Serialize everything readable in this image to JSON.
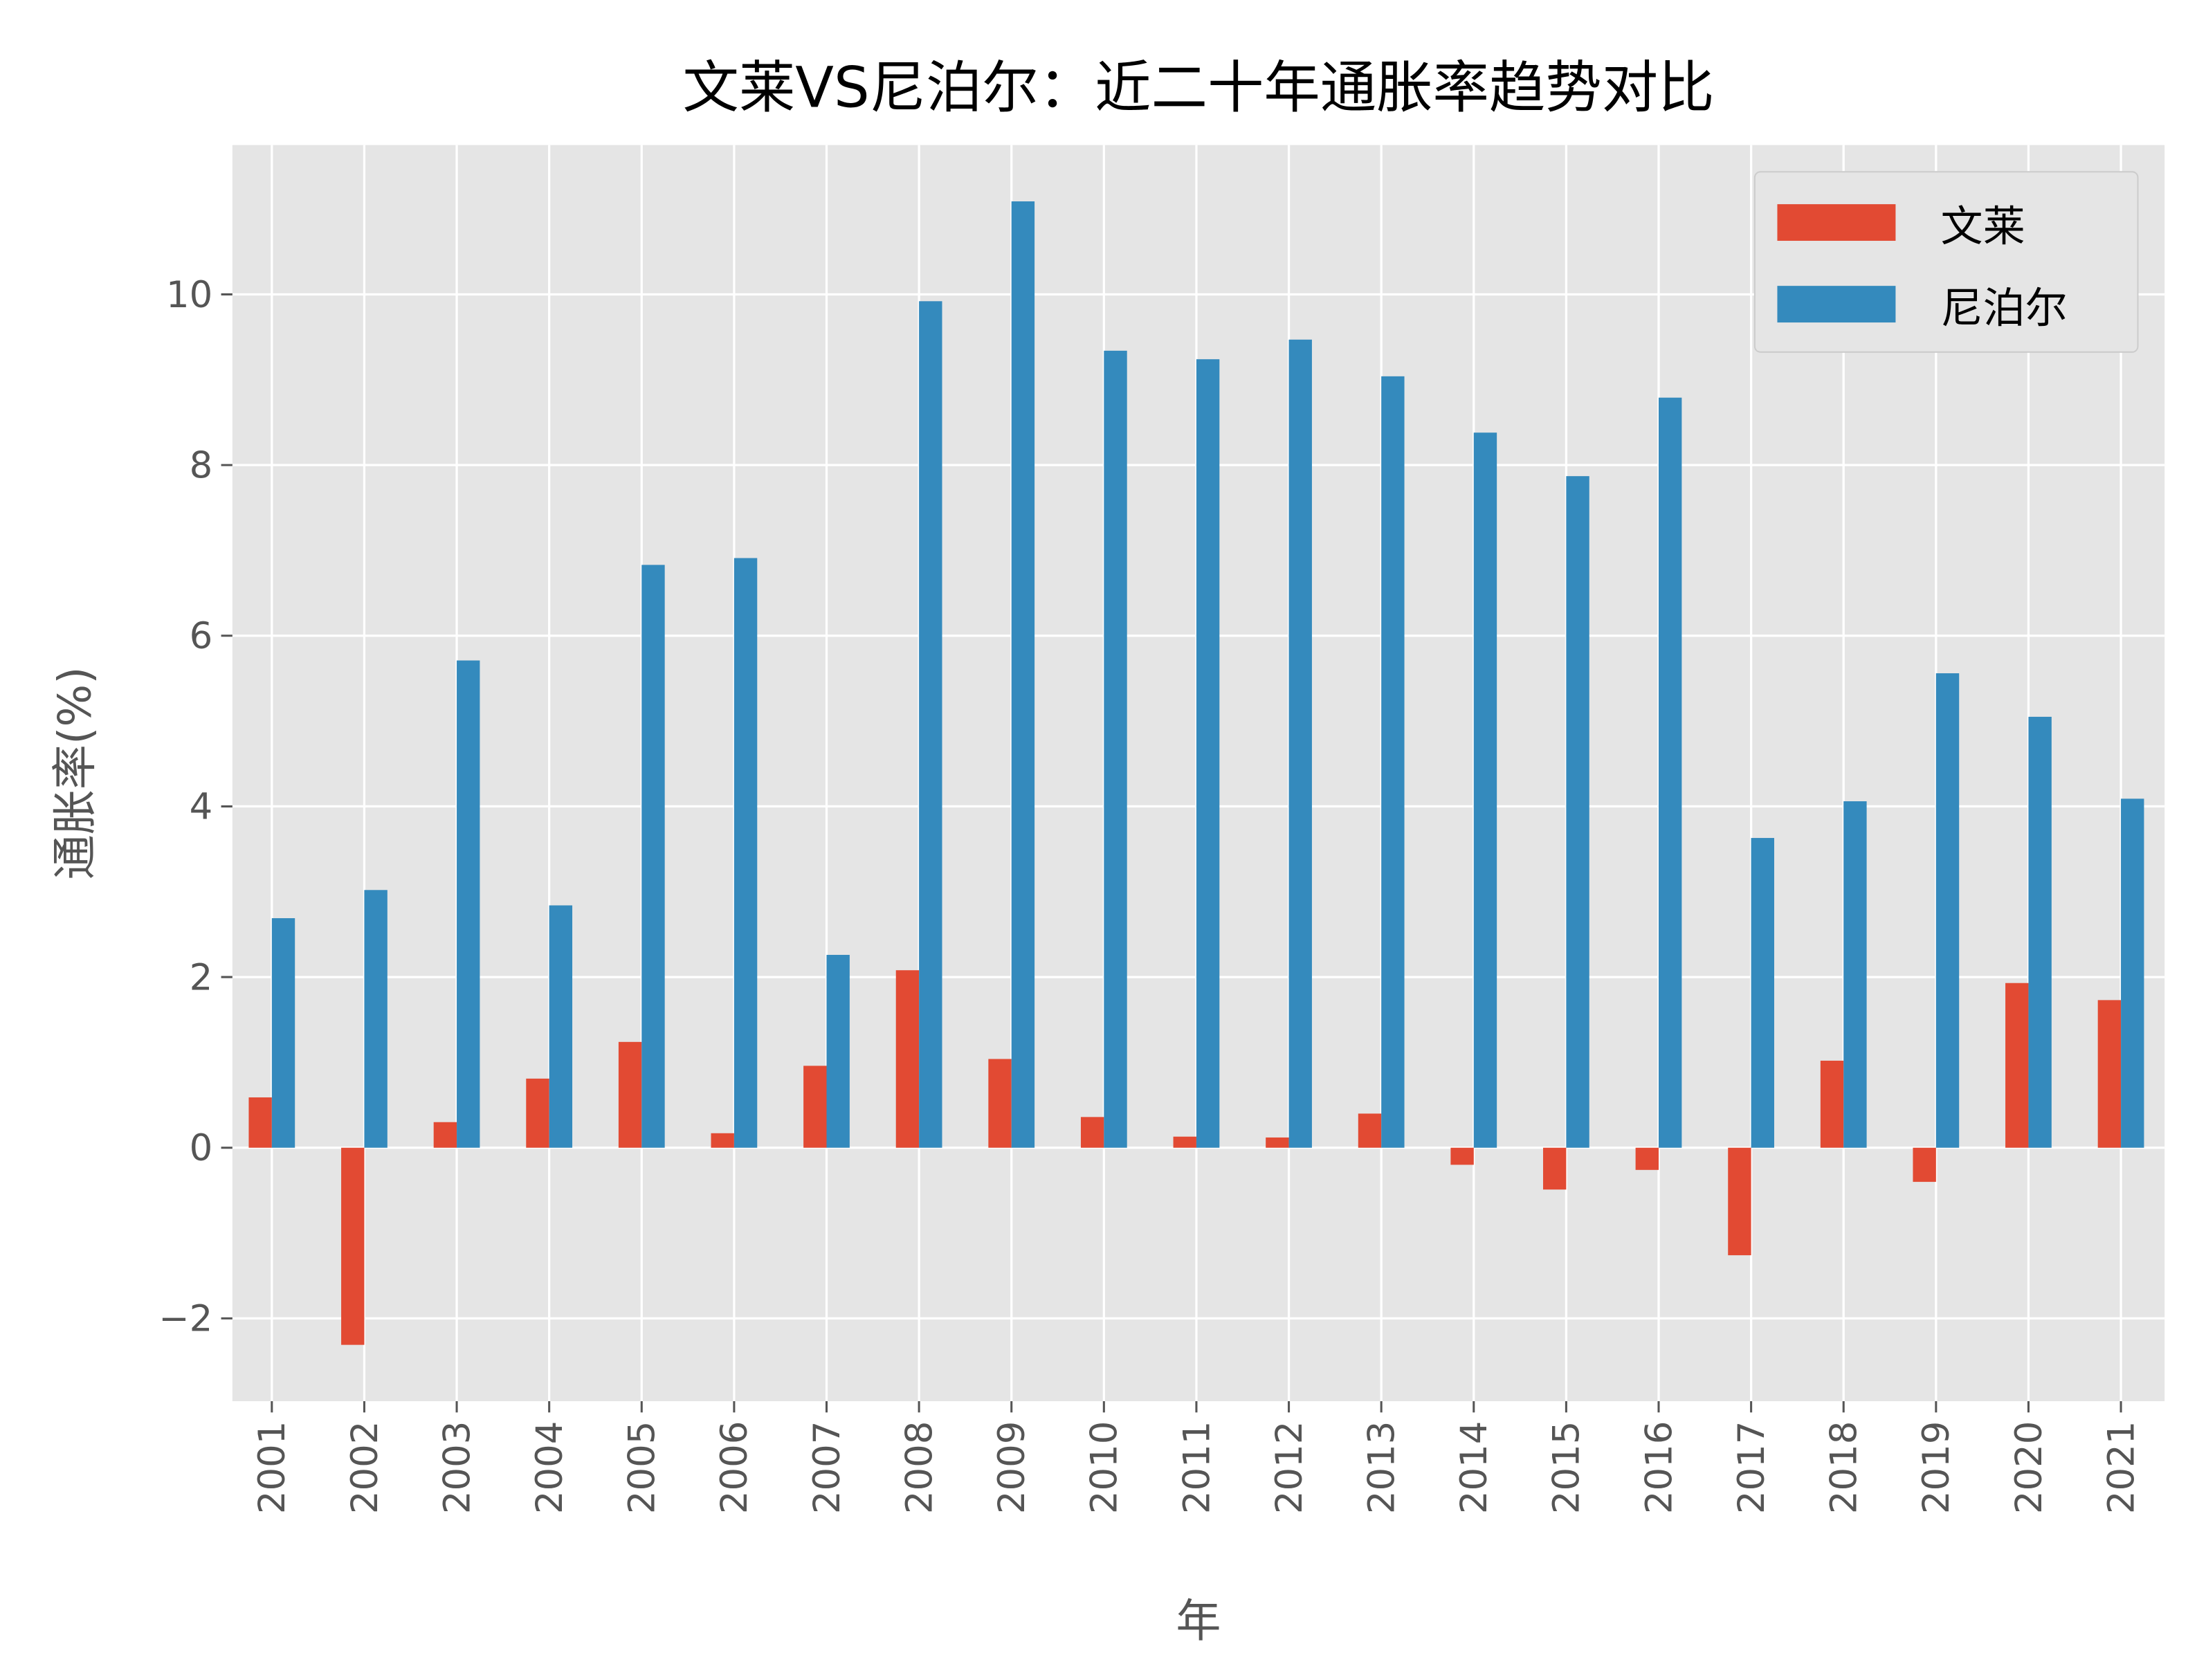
{
  "chart_data": {
    "type": "bar",
    "title": "文莱VS尼泊尔：近二十年通胀率趋势对比",
    "xlabel": "年",
    "ylabel": "通胀率(%)",
    "categories": [
      "2001",
      "2002",
      "2003",
      "2004",
      "2005",
      "2006",
      "2007",
      "2008",
      "2009",
      "2010",
      "2011",
      "2012",
      "2013",
      "2014",
      "2015",
      "2016",
      "2017",
      "2018",
      "2019",
      "2020",
      "2021"
    ],
    "series": [
      {
        "name": "文莱",
        "color": "#E24A33",
        "values": [
          0.59,
          -2.31,
          0.3,
          0.81,
          1.24,
          0.17,
          0.96,
          2.08,
          1.04,
          0.36,
          0.13,
          0.12,
          0.4,
          -0.2,
          -0.49,
          -0.26,
          -1.26,
          1.02,
          -0.4,
          1.93,
          1.73
        ]
      },
      {
        "name": "尼泊尔",
        "color": "#348ABD",
        "values": [
          2.69,
          3.02,
          5.71,
          2.84,
          6.83,
          6.91,
          2.26,
          9.92,
          11.09,
          9.34,
          9.24,
          9.47,
          9.04,
          8.38,
          7.87,
          8.79,
          3.63,
          4.06,
          5.56,
          5.05,
          4.09
        ]
      }
    ],
    "ylim": [
      -2.97,
      11.75
    ],
    "yticks": [
      -2,
      0,
      2,
      4,
      6,
      8,
      10
    ],
    "ytick_labels": [
      "−2",
      "0",
      "2",
      "4",
      "6",
      "8",
      "10"
    ],
    "grid": true,
    "background": "#E5E5E5",
    "legend_position": "top-right"
  }
}
